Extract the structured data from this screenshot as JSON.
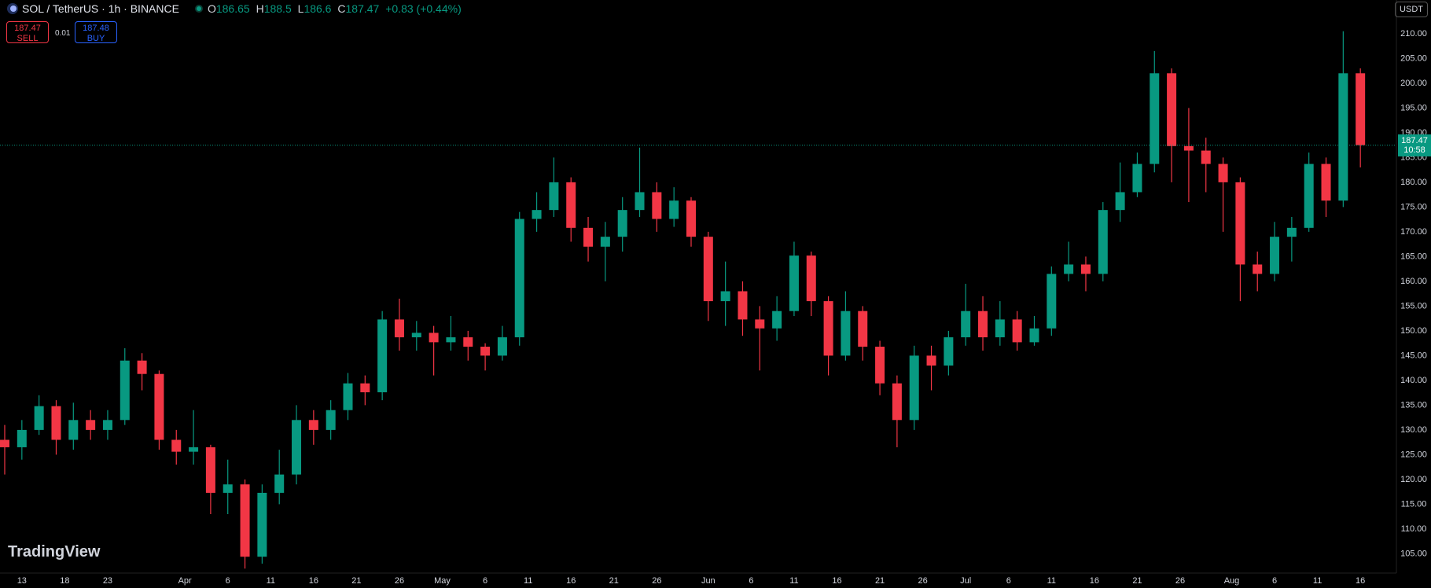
{
  "header": {
    "symbol": "SOL / TetherUS · 1h · BINANCE",
    "ohlc": {
      "open_label": "O",
      "open": 186.65,
      "high_label": "H",
      "high": 188.5,
      "low_label": "L",
      "low": 186.6,
      "close_label": "C",
      "close": 187.47,
      "change": "+0.83 (+0.44%)"
    },
    "sell": {
      "price": 187.47,
      "label": "SELL"
    },
    "spread": "0.01",
    "buy": {
      "price": 187.48,
      "label": "BUY"
    },
    "currency": "USDT",
    "logo": "TradingView"
  },
  "chart_data": {
    "type": "candlestick",
    "up_color": "#089981",
    "down_color": "#f23645",
    "last_price": 187.47,
    "countdown": "10:58",
    "x": [
      -2,
      0,
      2,
      4,
      6,
      8,
      10,
      12,
      14,
      16,
      18,
      20,
      22,
      24,
      26,
      28,
      30,
      32,
      34,
      36,
      38,
      40,
      42,
      44,
      46,
      48,
      50,
      52,
      54,
      56,
      58,
      60,
      62,
      64,
      66,
      68,
      70,
      72,
      74,
      76,
      78,
      80,
      82,
      84,
      86,
      88,
      90,
      92,
      94,
      96,
      98,
      100,
      102,
      104,
      106,
      108,
      110,
      112,
      114,
      116,
      118,
      120,
      122,
      124,
      126,
      128,
      130,
      132,
      134,
      136,
      138,
      140,
      142,
      144,
      146,
      148,
      150,
      152,
      154,
      156
    ],
    "open": [
      128,
      126.5,
      130,
      134.8,
      128,
      132,
      130,
      132,
      144,
      141.3,
      128,
      125.6,
      126.5,
      117.3,
      119,
      104.4,
      117.3,
      121,
      132,
      130,
      134,
      139.4,
      137.6,
      152.3,
      148.7,
      149.6,
      147.7,
      148.7,
      146.8,
      145,
      148.7,
      172.6,
      174.4,
      180,
      170.8,
      167,
      169,
      174.4,
      178,
      172.6,
      176.3,
      169,
      156,
      158,
      152.3,
      150.5,
      154,
      165.2,
      156,
      145,
      154,
      146.8,
      139.4,
      132,
      145,
      143,
      148.7,
      154,
      148.7,
      152.3,
      147.7,
      150.5,
      161.5,
      163.4,
      161.5,
      174.4,
      178,
      183.7,
      202,
      187.3,
      186.4,
      183.7,
      180,
      163.4,
      161.5,
      169,
      170.8,
      183.7,
      176.3,
      202
    ],
    "high": [
      131,
      132,
      137,
      136,
      135.5,
      134,
      134,
      146.5,
      145.5,
      142,
      130,
      134,
      127,
      124,
      120,
      119,
      126,
      135,
      134,
      136,
      141.5,
      141,
      154,
      156.5,
      152,
      151,
      153,
      150,
      147.5,
      151,
      174,
      178,
      185,
      181,
      173,
      172,
      177,
      187,
      180,
      179,
      177,
      170,
      164,
      160,
      155,
      157,
      168,
      166,
      157,
      158,
      155,
      148,
      141,
      147,
      147,
      150,
      159.5,
      157,
      156,
      154,
      153,
      163,
      168,
      165,
      176,
      184,
      186,
      206.5,
      203,
      195,
      189,
      185,
      181,
      166,
      172,
      173,
      186,
      185,
      210.5,
      203
    ],
    "low": [
      121,
      124,
      129,
      125,
      126,
      128,
      128,
      131,
      138,
      126,
      123,
      123,
      113,
      113,
      102,
      103,
      115,
      119,
      127,
      128,
      132,
      135,
      136,
      146,
      146,
      141,
      146,
      144,
      142,
      144,
      147,
      170,
      173,
      168,
      164,
      160,
      166,
      173,
      170,
      171,
      167,
      152,
      151,
      149,
      142,
      148,
      153,
      153,
      141,
      144,
      144,
      137,
      126.5,
      130,
      138,
      141,
      147,
      146,
      147,
      146,
      147,
      149,
      160,
      158,
      160,
      172,
      177,
      182,
      180,
      176,
      178,
      170,
      156,
      158,
      160,
      164,
      170,
      173,
      175,
      183
    ],
    "close": [
      126.5,
      130,
      134.8,
      128,
      132,
      130,
      132,
      144,
      141.3,
      128,
      125.6,
      126.5,
      117.3,
      119,
      104.4,
      117.3,
      121,
      132,
      130,
      134,
      139.4,
      137.6,
      152.3,
      148.7,
      149.6,
      147.7,
      148.7,
      146.8,
      145,
      148.7,
      172.6,
      174.4,
      180,
      170.8,
      167,
      169,
      174.4,
      178,
      172.6,
      176.3,
      169,
      156,
      158,
      152.3,
      150.5,
      154,
      165.2,
      156,
      145,
      154,
      146.8,
      139.4,
      132,
      145,
      143,
      148.7,
      154,
      148.7,
      152.3,
      147.7,
      150.5,
      161.5,
      163.4,
      161.5,
      174.4,
      178,
      183.7,
      202,
      187.3,
      186.4,
      183.7,
      180,
      163.4,
      161.5,
      169,
      170.8,
      183.7,
      176.3,
      202,
      187.5
    ],
    "xlim": [
      -2.55,
      160.2
    ],
    "xticks": [
      {
        "value": 0,
        "label": "13"
      },
      {
        "value": 5,
        "label": "18"
      },
      {
        "value": 10,
        "label": "23"
      },
      {
        "value": 19,
        "label": "Apr"
      },
      {
        "value": 24,
        "label": "6"
      },
      {
        "value": 29,
        "label": "11"
      },
      {
        "value": 34,
        "label": "16"
      },
      {
        "value": 39,
        "label": "21"
      },
      {
        "value": 44,
        "label": "26"
      },
      {
        "value": 49,
        "label": "May"
      },
      {
        "value": 54,
        "label": "6"
      },
      {
        "value": 59,
        "label": "11"
      },
      {
        "value": 64,
        "label": "16"
      },
      {
        "value": 69,
        "label": "21"
      },
      {
        "value": 74,
        "label": "26"
      },
      {
        "value": 80,
        "label": "Jun"
      },
      {
        "value": 85,
        "label": "6"
      },
      {
        "value": 90,
        "label": "11"
      },
      {
        "value": 95,
        "label": "16"
      },
      {
        "value": 100,
        "label": "21"
      },
      {
        "value": 105,
        "label": "26"
      },
      {
        "value": 110,
        "label": "Jul"
      },
      {
        "value": 115,
        "label": "6"
      },
      {
        "value": 120,
        "label": "11"
      },
      {
        "value": 125,
        "label": "16"
      },
      {
        "value": 130,
        "label": "21"
      },
      {
        "value": 135,
        "label": "26"
      },
      {
        "value": 141,
        "label": "Aug"
      },
      {
        "value": 146,
        "label": "6"
      },
      {
        "value": 151,
        "label": "11"
      },
      {
        "value": 156,
        "label": "16"
      }
    ],
    "ylim": [
      101.1,
      216.8
    ],
    "yticks": [
      {
        "value": 105,
        "label": "105.00"
      },
      {
        "value": 110,
        "label": "110.00"
      },
      {
        "value": 115,
        "label": "115.00"
      },
      {
        "value": 120,
        "label": "120.00"
      },
      {
        "value": 125,
        "label": "125.00"
      },
      {
        "value": 130,
        "label": "130.00"
      },
      {
        "value": 135,
        "label": "135.00"
      },
      {
        "value": 140,
        "label": "140.00"
      },
      {
        "value": 145,
        "label": "145.00"
      },
      {
        "value": 150,
        "label": "150.00"
      },
      {
        "value": 155,
        "label": "155.00"
      },
      {
        "value": 160,
        "label": "160.00"
      },
      {
        "value": 165,
        "label": "165.00"
      },
      {
        "value": 170,
        "label": "170.00"
      },
      {
        "value": 175,
        "label": "175.00"
      },
      {
        "value": 180,
        "label": "180.00"
      },
      {
        "value": 185,
        "label": "185.00"
      },
      {
        "value": 190,
        "label": "190.00"
      },
      {
        "value": 195,
        "label": "195.00"
      },
      {
        "value": 200,
        "label": "200.00"
      },
      {
        "value": 205,
        "label": "205.00"
      },
      {
        "value": 210,
        "label": "210.00"
      }
    ],
    "grid": false
  }
}
